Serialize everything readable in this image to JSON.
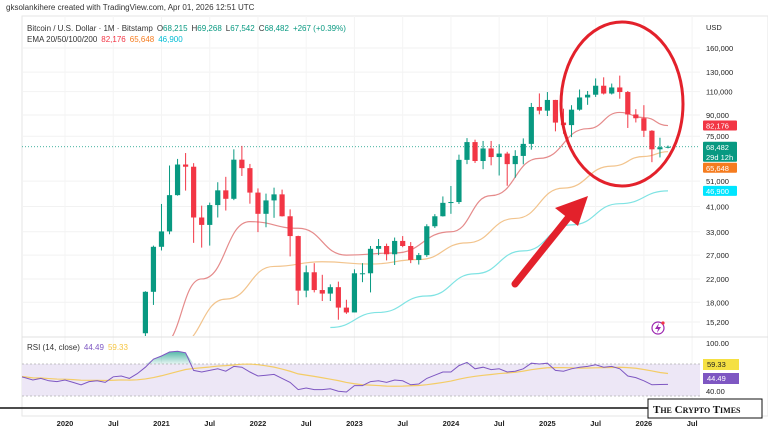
{
  "header": {
    "credit": "gksolankihere created with TradingView.com, Apr 01, 2026 12:51 UTC"
  },
  "legend": {
    "symbol": "Bitcoin / U.S. Dollar · 1M · Bitstamp",
    "o_label": "O",
    "o": "68,215",
    "h_label": "H",
    "h": "69,268",
    "l_label": "L",
    "l": "67,542",
    "c_label": "C",
    "c": "68,482",
    "change": "+267 (+0.39%)",
    "ema_label": "EMA 20/50/100/200",
    "ema20": "82,176",
    "ema50": "65,648",
    "ema100": "46,900"
  },
  "price_axis": {
    "currency": "USD",
    "scale": "log",
    "ticks": [
      {
        "v": 160000,
        "t": "160,000"
      },
      {
        "v": 130000,
        "t": "130,000"
      },
      {
        "v": 110000,
        "t": "110,000"
      },
      {
        "v": 90000,
        "t": "90,000"
      },
      {
        "v": 75000,
        "t": "75,000"
      },
      {
        "v": 51000,
        "t": "51,000"
      },
      {
        "v": 41000,
        "t": "41,000"
      },
      {
        "v": 33000,
        "t": "33,000"
      },
      {
        "v": 27000,
        "t": "27,000"
      },
      {
        "v": 22000,
        "t": "22,000"
      },
      {
        "v": 18000,
        "t": "18,000"
      },
      {
        "v": 15200,
        "t": "15,200"
      }
    ],
    "badges": [
      {
        "v": 82176,
        "t": "82,176",
        "sub": "",
        "color": "#f23645"
      },
      {
        "v": 68482,
        "t": "68,482",
        "sub": "29d 12h",
        "color": "#089981"
      },
      {
        "v": 65648,
        "t": "65,648",
        "sub": "",
        "color": "#f57c1f"
      },
      {
        "v": 46900,
        "t": "46,900",
        "sub": "",
        "color": "#00e5ff",
        "dark": true
      }
    ]
  },
  "time_axis": {
    "ticks": [
      {
        "d": "2020-01",
        "t": "2020"
      },
      {
        "d": "2020-07",
        "t": "Jul"
      },
      {
        "d": "2021-01",
        "t": "2021"
      },
      {
        "d": "2021-07",
        "t": "Jul"
      },
      {
        "d": "2022-01",
        "t": "2022"
      },
      {
        "d": "2022-07",
        "t": "Jul"
      },
      {
        "d": "2023-01",
        "t": "2023"
      },
      {
        "d": "2023-07",
        "t": "Jul"
      },
      {
        "d": "2024-01",
        "t": "2024"
      },
      {
        "d": "2024-07",
        "t": "Jul"
      },
      {
        "d": "2025-01",
        "t": "2025"
      },
      {
        "d": "2025-07",
        "t": "Jul"
      },
      {
        "d": "2026-01",
        "t": "2026"
      },
      {
        "d": "2026-07",
        "t": "Jul"
      }
    ]
  },
  "rsi": {
    "label": "RSI (14, close)",
    "value": "44.49",
    "ma_value": "59.33",
    "top_tick": "100.00",
    "bottom_tick": "40.00",
    "bands": [
      30,
      70
    ],
    "colors": {
      "rsi": "#7e57c2",
      "ma": "#f5c542",
      "band": "#ede7f6"
    }
  },
  "watermark": "The Crypto Times",
  "colors": {
    "up": "#089981",
    "down": "#f23645",
    "ema20": "#e58b8b",
    "ema50": "#f2c48d",
    "ema100": "#7fe3e3",
    "annotation": "#e3212b"
  },
  "chart_data": {
    "type": "candlestick",
    "interval": "1M",
    "yscale": "log",
    "columns": [
      "date",
      "open",
      "high",
      "low",
      "close"
    ],
    "candles": [
      [
        "2020-11",
        13800,
        19800,
        13200,
        19700
      ],
      [
        "2020-12",
        19700,
        29300,
        17600,
        29000
      ],
      [
        "2021-01",
        29000,
        41900,
        28100,
        33100
      ],
      [
        "2021-02",
        33100,
        58300,
        32300,
        45200
      ],
      [
        "2021-03",
        45200,
        61700,
        45000,
        58800
      ],
      [
        "2021-04",
        58800,
        64900,
        47000,
        57700
      ],
      [
        "2021-05",
        57700,
        59500,
        30000,
        37300
      ],
      [
        "2021-06",
        37300,
        41300,
        28800,
        35000
      ],
      [
        "2021-07",
        35000,
        42400,
        29300,
        41500
      ],
      [
        "2021-08",
        41500,
        50500,
        37300,
        47100
      ],
      [
        "2021-09",
        47100,
        52900,
        39600,
        43800
      ],
      [
        "2021-10",
        43800,
        67000,
        43300,
        61300
      ],
      [
        "2021-11",
        61300,
        69000,
        53300,
        57000
      ],
      [
        "2021-12",
        57000,
        59100,
        42000,
        46200
      ],
      [
        "2022-01",
        46200,
        47900,
        32900,
        38500
      ],
      [
        "2022-02",
        38500,
        45800,
        34300,
        43200
      ],
      [
        "2022-03",
        43200,
        48200,
        37200,
        45500
      ],
      [
        "2022-04",
        45500,
        47400,
        37600,
        37700
      ],
      [
        "2022-05",
        37700,
        40000,
        26700,
        31800
      ],
      [
        "2022-06",
        31800,
        31900,
        17600,
        19900
      ],
      [
        "2022-07",
        19900,
        24700,
        18800,
        23300
      ],
      [
        "2022-08",
        23300,
        25200,
        19600,
        20000
      ],
      [
        "2022-09",
        20000,
        22800,
        18200,
        19400
      ],
      [
        "2022-10",
        19400,
        21000,
        18200,
        20500
      ],
      [
        "2022-11",
        20500,
        21500,
        15500,
        17200
      ],
      [
        "2022-12",
        17200,
        18400,
        16300,
        16500
      ],
      [
        "2023-01",
        16500,
        23900,
        16500,
        23100
      ],
      [
        "2023-02",
        23100,
        25200,
        21400,
        23100
      ],
      [
        "2023-03",
        23100,
        29200,
        19600,
        28500
      ],
      [
        "2023-04",
        28500,
        31000,
        27000,
        29200
      ],
      [
        "2023-05",
        29200,
        29800,
        25800,
        27200
      ],
      [
        "2023-06",
        27200,
        31400,
        24800,
        30500
      ],
      [
        "2023-07",
        30500,
        31800,
        28900,
        29200
      ],
      [
        "2023-08",
        29200,
        30200,
        25200,
        25900
      ],
      [
        "2023-09",
        25900,
        27500,
        24900,
        27000
      ],
      [
        "2023-10",
        27000,
        35200,
        26600,
        34600
      ],
      [
        "2023-11",
        34600,
        38400,
        34100,
        37700
      ],
      [
        "2023-12",
        37700,
        44700,
        37600,
        42300
      ],
      [
        "2024-01",
        42300,
        48900,
        38500,
        42600
      ],
      [
        "2024-02",
        42600,
        64000,
        41900,
        61200
      ],
      [
        "2024-03",
        61200,
        73800,
        59000,
        71300
      ],
      [
        "2024-04",
        71300,
        72800,
        59600,
        60600
      ],
      [
        "2024-05",
        60600,
        72000,
        56500,
        67500
      ],
      [
        "2024-06",
        67500,
        72000,
        58400,
        62700
      ],
      [
        "2024-07",
        62700,
        70000,
        53500,
        64600
      ],
      [
        "2024-08",
        64600,
        65600,
        49000,
        59000
      ],
      [
        "2024-09",
        59000,
        66500,
        52500,
        63300
      ],
      [
        "2024-10",
        63300,
        73600,
        58900,
        70200
      ],
      [
        "2024-11",
        70200,
        99800,
        66800,
        96400
      ],
      [
        "2024-12",
        96400,
        108300,
        90500,
        93400
      ],
      [
        "2025-01",
        93400,
        109600,
        89200,
        102400
      ],
      [
        "2025-02",
        102400,
        102500,
        78200,
        84300
      ],
      [
        "2025-03",
        84300,
        95000,
        76600,
        82500
      ],
      [
        "2025-04",
        82500,
        97900,
        74400,
        94200
      ],
      [
        "2025-05",
        94200,
        112000,
        93400,
        104600
      ],
      [
        "2025-06",
        104600,
        110600,
        98200,
        107100
      ],
      [
        "2025-07",
        107100,
        123200,
        105100,
        115700
      ],
      [
        "2025-08",
        115700,
        124400,
        107300,
        108200
      ],
      [
        "2025-09",
        108200,
        117900,
        107300,
        114000
      ],
      [
        "2025-10",
        114000,
        126200,
        103500,
        109600
      ],
      [
        "2025-11",
        109600,
        110600,
        80500,
        90400
      ],
      [
        "2025-12",
        90400,
        94600,
        84400,
        87500
      ],
      [
        "2026-01",
        87500,
        97900,
        74500,
        78600
      ],
      [
        "2026-02",
        78600,
        79000,
        60000,
        67000
      ],
      [
        "2026-03",
        67000,
        74000,
        62500,
        68215
      ],
      [
        "2026-04",
        68215,
        69268,
        67542,
        68482
      ]
    ],
    "ema": [
      {
        "name": "EMA 20",
        "points": [
          [
            "2021-01",
            12500
          ],
          [
            "2021-06",
            22000
          ],
          [
            "2021-12",
            36000
          ],
          [
            "2022-06",
            34000
          ],
          [
            "2022-12",
            27000
          ],
          [
            "2023-06",
            27500
          ],
          [
            "2024-01",
            33000
          ],
          [
            "2024-06",
            45000
          ],
          [
            "2024-12",
            62000
          ],
          [
            "2025-06",
            80000
          ],
          [
            "2025-10",
            92000
          ],
          [
            "2026-01",
            88000
          ],
          [
            "2026-04",
            82176
          ]
        ]
      },
      {
        "name": "EMA 50",
        "points": [
          [
            "2021-03",
            12500
          ],
          [
            "2021-09",
            18500
          ],
          [
            "2022-03",
            24500
          ],
          [
            "2022-09",
            25500
          ],
          [
            "2023-03",
            25000
          ],
          [
            "2023-09",
            26000
          ],
          [
            "2024-03",
            30000
          ],
          [
            "2024-09",
            37000
          ],
          [
            "2025-03",
            48000
          ],
          [
            "2025-09",
            58000
          ],
          [
            "2026-01",
            63000
          ],
          [
            "2026-04",
            65648
          ]
        ]
      },
      {
        "name": "EMA 100",
        "points": [
          [
            "2022-10",
            14500
          ],
          [
            "2023-04",
            16500
          ],
          [
            "2023-10",
            19000
          ],
          [
            "2024-04",
            23000
          ],
          [
            "2024-10",
            28000
          ],
          [
            "2025-04",
            35000
          ],
          [
            "2025-10",
            42000
          ],
          [
            "2026-04",
            46900
          ]
        ]
      }
    ],
    "rsi_start": "2019-07",
    "rsi_values": [
      55,
      53,
      50,
      52,
      49,
      48,
      50,
      47,
      44,
      48,
      49,
      47,
      54,
      55,
      52,
      58,
      66,
      76,
      80,
      85,
      86,
      84,
      62,
      60,
      62,
      64,
      61,
      67,
      66,
      60,
      55,
      56,
      57,
      52,
      47,
      38,
      40,
      38,
      38,
      39,
      36,
      35,
      43,
      43,
      48,
      49,
      47,
      50,
      49,
      44,
      45,
      52,
      56,
      60,
      60,
      68,
      72,
      64,
      66,
      63,
      64,
      60,
      61,
      64,
      71,
      70,
      71,
      62,
      61,
      64,
      66,
      67,
      69,
      66,
      67,
      64,
      55,
      53,
      49,
      44,
      44.3,
      44.49
    ]
  }
}
